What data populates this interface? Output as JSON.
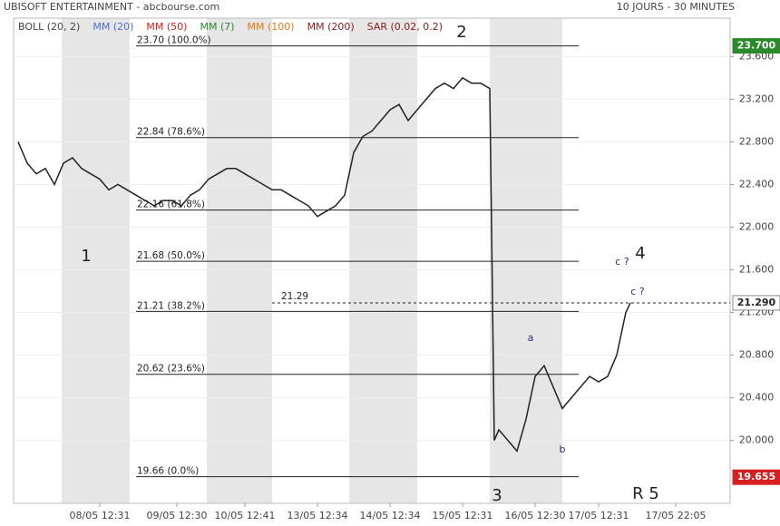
{
  "chart_data": {
    "type": "line",
    "title": "UBISOFT ENTERTAINMENT - abcbourse.com",
    "subtitle": "10 JOURS - 30 MINUTES",
    "legend": [
      {
        "name": "BOLL (20, 2)",
        "color": "#444444"
      },
      {
        "name": "MM (20)",
        "color": "#4a6fd8"
      },
      {
        "name": "MM (50)",
        "color": "#d62020"
      },
      {
        "name": "MM (7)",
        "color": "#2a8a2a"
      },
      {
        "name": "MM (100)",
        "color": "#e07a10"
      },
      {
        "name": "MM (200)",
        "color": "#8b1a1a"
      },
      {
        "name": "SAR (0.02, 0.2)",
        "color": "#8b1a1a"
      }
    ],
    "x": [
      1,
      3,
      5,
      7,
      9,
      11,
      13,
      15,
      17,
      19,
      21,
      23,
      25,
      27,
      29,
      31,
      33,
      35,
      37,
      39,
      41,
      43,
      45,
      47,
      49,
      51,
      53,
      55,
      57,
      59,
      61,
      63,
      65,
      67,
      69,
      71,
      73,
      75,
      77,
      79,
      81,
      83,
      85,
      87,
      89,
      91,
      93,
      95,
      97,
      99,
      101,
      103,
      105,
      106,
      107,
      109,
      111,
      113,
      115,
      117,
      119,
      121,
      123,
      125,
      127,
      129,
      131,
      133,
      135,
      136
    ],
    "series": [
      {
        "name": "UBISOFT ENTERTAINMENT",
        "color": "#222222",
        "values": [
          22.8,
          22.6,
          22.5,
          22.55,
          22.4,
          22.6,
          22.65,
          22.55,
          22.5,
          22.45,
          22.35,
          22.4,
          22.35,
          22.3,
          22.25,
          22.2,
          22.25,
          22.25,
          22.2,
          22.3,
          22.35,
          22.45,
          22.5,
          22.55,
          22.55,
          22.5,
          22.45,
          22.4,
          22.35,
          22.35,
          22.3,
          22.25,
          22.2,
          22.1,
          22.15,
          22.2,
          22.3,
          22.7,
          22.85,
          22.9,
          23.0,
          23.1,
          23.15,
          23.0,
          23.1,
          23.2,
          23.3,
          23.35,
          23.3,
          23.4,
          23.35,
          23.35,
          23.3,
          20.0,
          20.1,
          20.0,
          19.9,
          20.2,
          20.6,
          20.7,
          20.5,
          20.3,
          20.4,
          20.5,
          20.6,
          20.55,
          20.6,
          20.8,
          21.2,
          21.29
        ]
      }
    ],
    "xlim": [
      0,
      158
    ],
    "xticks": [
      {
        "value": 19,
        "label": "08/05 12:31"
      },
      {
        "value": 36,
        "label": "09/05 12:30"
      },
      {
        "value": 51,
        "label": "10/05 12:41"
      },
      {
        "value": 67,
        "label": "13/05 12:34"
      },
      {
        "value": 83,
        "label": "14/05 12:34"
      },
      {
        "value": 99,
        "label": "15/05 12:31"
      },
      {
        "value": 115,
        "label": "16/05 12:30"
      },
      {
        "value": 129,
        "label": "17/05 12:31"
      },
      {
        "value": 146,
        "label": "17/05 22:05"
      }
    ],
    "ylim": [
      19.41,
      23.96
    ],
    "yticks": [
      {
        "value": 20,
        "label": "20.000"
      },
      {
        "value": 20.4,
        "label": "20.400"
      },
      {
        "value": 20.8,
        "label": "20.800"
      },
      {
        "value": 21.2,
        "label": "21.200"
      },
      {
        "value": 21.6,
        "label": "21.600"
      },
      {
        "value": 22,
        "label": "22.000"
      },
      {
        "value": 22.4,
        "label": "22.400"
      },
      {
        "value": 22.8,
        "label": "22.800"
      },
      {
        "value": 23.2,
        "label": "23.200"
      },
      {
        "value": 23.6,
        "label": "23.600"
      }
    ],
    "fib_levels": [
      {
        "value": 23.7,
        "label": "23.70  (100.0%)"
      },
      {
        "value": 22.84,
        "label": "22.84  (78.6%)"
      },
      {
        "value": 22.16,
        "label": "22.16  (61.8%)"
      },
      {
        "value": 21.68,
        "label": "21.68  (50.0%)"
      },
      {
        "value": 21.21,
        "label": "21.21  (38.2%)"
      },
      {
        "value": 20.62,
        "label": "20.62  (23.6%)"
      },
      {
        "value": 19.66,
        "label": "19.66  (0.0%)"
      }
    ],
    "last_price": 21.29,
    "price_tags": [
      {
        "value": 23.7,
        "label": "23.700",
        "color": "#2a8a2a"
      },
      {
        "value": 21.29,
        "label": "21.290",
        "color": "#ffffff"
      },
      {
        "value": 19.655,
        "label": "19.655",
        "color": "#d62020"
      }
    ],
    "annotations": [
      "1",
      "2",
      "3",
      "4",
      "R 5",
      "a",
      "b",
      "c ?",
      "c ?"
    ],
    "grid": true
  }
}
